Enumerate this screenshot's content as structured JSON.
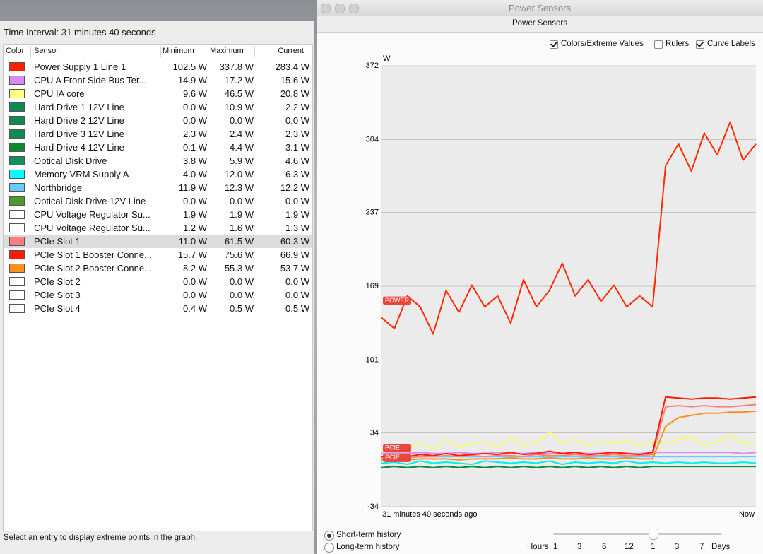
{
  "panel": {
    "interval": "Time Interval: 31 minutes 40 seconds",
    "columns": [
      "Color",
      "Sensor",
      "Minimum",
      "Maximum",
      "Current"
    ],
    "rows": [
      {
        "color": "#ff2000",
        "sensor": "Power Supply 1 Line 1",
        "min": "102.5 W",
        "max": "337.8 W",
        "current": "283.4 W"
      },
      {
        "color": "#d98cf0",
        "sensor": "CPU A Front Side Bus Ter...",
        "min": "14.9 W",
        "max": "17.2 W",
        "current": "15.6 W"
      },
      {
        "color": "#ffff80",
        "sensor": "CPU IA core",
        "min": "9.6 W",
        "max": "46.5 W",
        "current": "20.8 W"
      },
      {
        "color": "#0f8a55",
        "sensor": "Hard Drive 1 12V Line",
        "min": "0.0 W",
        "max": "10.9 W",
        "current": "2.2 W"
      },
      {
        "color": "#0f8a55",
        "sensor": "Hard Drive 2 12V Line",
        "min": "0.0 W",
        "max": "0.0 W",
        "current": "0.0 W"
      },
      {
        "color": "#0f8a55",
        "sensor": "Hard Drive 3 12V Line",
        "min": "2.3 W",
        "max": "2.4 W",
        "current": "2.3 W"
      },
      {
        "color": "#0c8a2e",
        "sensor": "Hard Drive 4 12V Line",
        "min": "0.1 W",
        "max": "4.4 W",
        "current": "3.1 W"
      },
      {
        "color": "#108f5a",
        "sensor": "Optical Disk Drive",
        "min": "3.8 W",
        "max": "5.9 W",
        "current": "4.6 W"
      },
      {
        "color": "#00ffff",
        "sensor": "Memory VRM Supply A",
        "min": "4.0 W",
        "max": "12.0 W",
        "current": "6.3 W"
      },
      {
        "color": "#66ccff",
        "sensor": "Northbridge",
        "min": "11.9 W",
        "max": "12.3 W",
        "current": "12.2 W"
      },
      {
        "color": "#4b9a2a",
        "sensor": "Optical Disk Drive 12V Line",
        "min": "0.0 W",
        "max": "0.0 W",
        "current": "0.0 W"
      },
      {
        "color": "#ffffff",
        "sensor": "CPU Voltage Regulator Su...",
        "min": "1.9 W",
        "max": "1.9 W",
        "current": "1.9 W"
      },
      {
        "color": "#ffffff",
        "sensor": "CPU Voltage Regulator Su...",
        "min": "1.2 W",
        "max": "1.6 W",
        "current": "1.3 W"
      },
      {
        "color": "#ff8080",
        "sensor": "PCIe Slot 1",
        "min": "11.0 W",
        "max": "61.5 W",
        "current": "60.3 W",
        "selected": true
      },
      {
        "color": "#ff1a00",
        "sensor": "PCIe Slot 1 Booster Conne...",
        "min": "15.7 W",
        "max": "75.6 W",
        "current": "66.9 W"
      },
      {
        "color": "#ff9020",
        "sensor": "PCIe Slot 2 Booster Conne...",
        "min": "8.2 W",
        "max": "55.3 W",
        "current": "53.7 W"
      },
      {
        "color": "#ffffff",
        "sensor": "PCIe Slot 2",
        "min": "0.0 W",
        "max": "0.0 W",
        "current": "0.0 W"
      },
      {
        "color": "#ffffff",
        "sensor": "PCIe Slot 3",
        "min": "0.0 W",
        "max": "0.0 W",
        "current": "0.0 W"
      },
      {
        "color": "#ffffff",
        "sensor": "PCIe Slot 4",
        "min": "0.4 W",
        "max": "0.5 W",
        "current": "0.5 W"
      }
    ],
    "status": "Select an entry to display extreme points in the graph."
  },
  "window": {
    "title": "Power Sensors",
    "toolbar": "Power Sensors",
    "options": [
      {
        "label": "Colors/Extreme Values",
        "checked": true
      },
      {
        "label": "Rulers",
        "checked": false
      },
      {
        "label": "Curve Labels",
        "checked": true
      }
    ],
    "history": [
      {
        "label": "Short-term history",
        "selected": true
      },
      {
        "label": "Long-term history",
        "selected": false
      }
    ],
    "scale": [
      "Hours",
      "1",
      "3",
      "6",
      "12",
      "1",
      "3",
      "7",
      "Days"
    ]
  },
  "chart_data": {
    "type": "line",
    "y_unit": "W",
    "ylim": [
      -34,
      372
    ],
    "yticks": [
      -34,
      34,
      101,
      169,
      237,
      304,
      372
    ],
    "grid": true,
    "categories": [
      "31 minutes 40 seconds ago",
      null,
      null,
      null,
      null,
      null,
      null,
      null,
      null,
      null,
      null,
      null,
      null,
      null,
      null,
      null,
      null,
      null,
      null,
      null,
      null,
      null,
      null,
      null,
      null,
      null,
      null,
      null,
      null,
      "Now"
    ],
    "series": [
      {
        "color": "#0c8a2e",
        "values": [
          2,
          3,
          2,
          3,
          2,
          3,
          2,
          3,
          2,
          3,
          2,
          3,
          2,
          3,
          2,
          3,
          2,
          3,
          2,
          3,
          2,
          3,
          3,
          3,
          3,
          3,
          3,
          3,
          3,
          3
        ]
      },
      {
        "color": "#00f0f0",
        "values": [
          6,
          7,
          5,
          8,
          6,
          7,
          6,
          5,
          8,
          7,
          6,
          7,
          6,
          8,
          5,
          7,
          6,
          7,
          6,
          8,
          6,
          7,
          6,
          7,
          6,
          7,
          6,
          6,
          7,
          6
        ]
      },
      {
        "color": "#66ccff",
        "values": [
          12,
          12,
          12,
          12,
          12,
          12,
          12,
          12,
          12,
          12,
          12,
          12,
          12,
          12,
          12,
          12,
          12,
          12,
          12,
          12,
          12,
          12,
          12,
          12,
          12,
          12,
          12,
          12,
          12,
          12
        ]
      },
      {
        "color": "#d98cf0",
        "values": [
          15,
          15,
          15,
          16,
          15,
          15,
          16,
          15,
          15,
          16,
          15,
          15,
          16,
          15,
          15,
          16,
          15,
          15,
          16,
          15,
          15,
          16,
          16,
          16,
          16,
          16,
          16,
          16,
          15,
          16
        ]
      },
      {
        "color": "#fafa70",
        "values": [
          18,
          22,
          20,
          25,
          19,
          28,
          21,
          24,
          26,
          20,
          30,
          22,
          25,
          35,
          24,
          28,
          22,
          26,
          24,
          27,
          22,
          25,
          24,
          28,
          30,
          22,
          26,
          32,
          24,
          26
        ]
      },
      {
        "color": "#ff9020",
        "values": [
          9,
          10,
          9,
          10,
          10,
          10,
          9,
          10,
          10,
          10,
          11,
          10,
          10,
          11,
          10,
          10,
          11,
          10,
          10,
          11,
          10,
          10,
          40,
          48,
          50,
          52,
          52,
          53,
          53,
          54
        ]
      },
      {
        "color": "#ff8080",
        "curve_label": "PCIE",
        "values": [
          11,
          12,
          11,
          12,
          12,
          13,
          12,
          13,
          12,
          13,
          13,
          12,
          14,
          13,
          13,
          14,
          13,
          13,
          14,
          13,
          13,
          14,
          58,
          59,
          58,
          59,
          58,
          58,
          59,
          60
        ]
      },
      {
        "color": "#ff1a00",
        "curve_label": "PCIE",
        "values": [
          12,
          13,
          12,
          14,
          13,
          15,
          13,
          14,
          15,
          14,
          16,
          14,
          15,
          17,
          15,
          16,
          14,
          15,
          16,
          15,
          14,
          16,
          67,
          66,
          65,
          66,
          66,
          65,
          66,
          67
        ]
      },
      {
        "color": "#ff2a00",
        "curve_label": "POWER",
        "values": [
          140,
          130,
          160,
          150,
          125,
          165,
          145,
          170,
          150,
          160,
          135,
          175,
          150,
          165,
          190,
          160,
          175,
          155,
          170,
          150,
          160,
          150,
          280,
          300,
          275,
          310,
          290,
          320,
          285,
          300
        ]
      }
    ]
  }
}
